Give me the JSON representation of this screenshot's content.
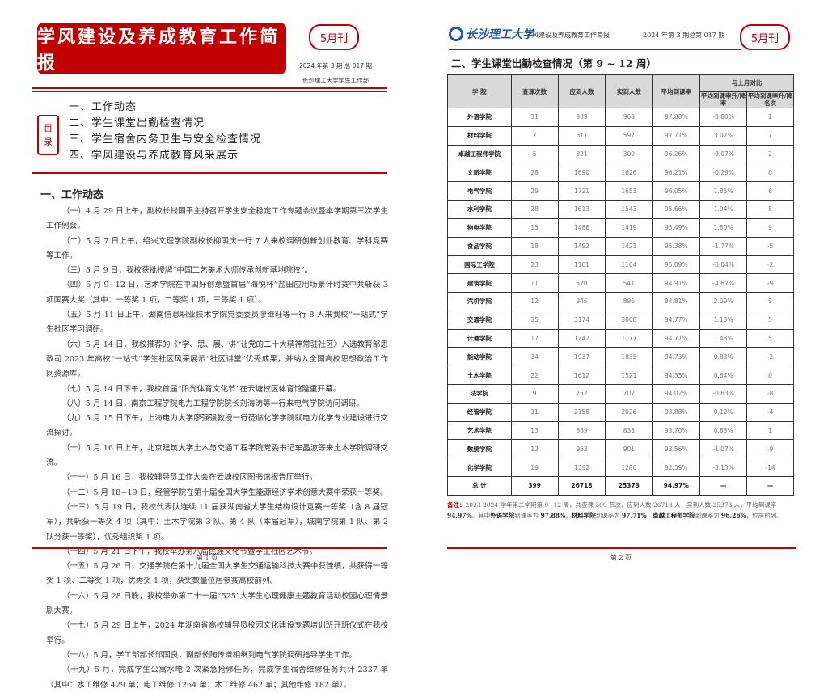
{
  "page1": {
    "banner_title": "学风建设及养成教育工作简报",
    "edition_label": "5月刊",
    "issue": "2024 年第 3 期 总 017 期",
    "publisher": "长沙理工大学学生工作部",
    "toc_label": [
      "目",
      "录"
    ],
    "toc": [
      "一、工作动态",
      "二、学生课堂出勤检查情况",
      "三、学生宿舍内务卫生与安全检查情况",
      "四、学风建设与养成教育风采展示"
    ],
    "section_title": "一、工作动态",
    "paragraphs": [
      "（一）4 月 29 日上午，副校长钱国平主持召开学生安全稳定工作专题会议暨本学期第三次学生工作例会。",
      "（二）5 月 7 日上午，绍兴文理学院副校长柳国庆一行 7 人来校调研创新创业教育、学科竞赛等工作。",
      "（三）5 月 9 日，我校获批授牌“中国工艺美术大师传承创新基地院校”。",
      "（四）5 月 9~12 日，艺术学院在中国好创意暨首届“海悦杯”盐田应用场景计时赛中共斩获 3 项国赛大奖（其中：一等奖 1 项，二等奖 1 项，三等奖 1 项）。",
      "（五）5 月 11 日上午，湖南信息职业技术学院党委委员廖继旺等一行 8 人来我校“一站式”学生社区学习调研。",
      "（六）5 月 14 日，我校推荐的《“学、思、展、讲”让党的二十大精神常驻社区》入选教育部思政司 2023 年高校“一站式”学生社区风采展示“社区讲堂”优秀成果，并纳入全国高校思想政治工作网资源库。",
      "（七）5 月 14 日下午，我校首届“阳光体育文化节”在云塘校区体育馆隆重开幕。",
      "（八）5 月 14 日，南京工程学院电力工程学院院长刘海涛等一行来电气学院访问调研。",
      "（九）5 月 15 日下午，上海电力大学廖强强教授一行莅临化学学院就电力化学专业建设进行交流探讨。",
      "（十）5 月 16 日上午，北京建筑大学土木与交通工程学院党委书记车晶波等来土木学院调研交流。",
      "（十一）5 月 16 日，我校辅导员工作大会在云塘校区图书馆报告厅举行。",
      "（十二）5 月 18~19 日，经管学院在第十届全国大学生能源经济学术创意大赛中荣获一等奖。",
      "（十三）5 月 19 日，我校代表队连续 11 届获湖南省大学生结构设计竞赛一等奖（含 8 届冠军），共斩获一等奖 4 项（其中：土木学院第 3 队、第 4 队（本届冠军），城南学院第 1 队、第 2 队分获一等奖），优秀组织奖 1 项。",
      "（十四）5 月 21 日下午，我校举办第八届民族文化节暨学生社区艺术节。",
      "（十五）5 月 26 日，交通学院在第十九届全国大学生交通运输科技大赛中获佳绩，共获得一等奖 1 项、二等奖 1 项，优秀奖 1 项，获奖数量位居参赛高校前列。",
      "（十六）5 月 28 日晚，我校举办第二十一届“525”大学生心理健康主题教育活动校园心理情景剧大赛。",
      "（十七）5 月 29 日上午，2024 年湖南省高校辅导员校园文化建设专题培训班开班仪式在我校举行。",
      "（十八）5 月，学工部部长邱国良，副部长陶传谱相继到电气学院调研指导学生工作。",
      "（十九）5 月，完成学生公寓水电 2 次紧急抢修任务，完成学生宿舍维修任务共计 2337 单（其中：水工维修 429 单；电工维修 1264 单；木工维修 462 单；其他维修 182 单）。"
    ],
    "page_number": "第 1 页"
  },
  "page2": {
    "logo_text": "长沙理工大学",
    "header_title": "学风建设及养成教育工作简报",
    "header_issue": "2024 年第 3 期总第 017 期",
    "edition_label": "5月刊",
    "section_title": "二、学生课堂出勤检查情况（第 9 ~ 12 周）",
    "table": {
      "headers": [
        "学 院",
        "查课次数",
        "应到人数",
        "实到人数",
        "平均到课率",
        "与上月对比",
        "平均到课率升/降率",
        "平均到课率升/降名次"
      ],
      "rows": [
        [
          "外语学院",
          "31",
          "989",
          "968",
          "97.88%",
          "-0.80%",
          "1"
        ],
        [
          "材料学院",
          "7",
          "611",
          "597",
          "97.71%",
          "3.07%",
          "7"
        ],
        [
          "卓越工程师学院",
          "5",
          "321",
          "309",
          "96.26%",
          "-0.07%",
          "2"
        ],
        [
          "文新学院",
          "28",
          "1690",
          "1626",
          "96.21%",
          "-0.29%",
          "0"
        ],
        [
          "电气学院",
          "29",
          "1721",
          "1653",
          "96.05%",
          "1.86%",
          "6"
        ],
        [
          "水利学院",
          "28",
          "1613",
          "1543",
          "95.66%",
          "1.94%",
          "8"
        ],
        [
          "物电学院",
          "15",
          "1486",
          "1419",
          "95.49%",
          "1.80%",
          "9"
        ],
        [
          "食品学院",
          "18",
          "1492",
          "1423",
          "95.38%",
          "-1.77%",
          "-5"
        ],
        [
          "国际工学院",
          "23",
          "1161",
          "1104",
          "95.09%",
          "-0.04%",
          "-2"
        ],
        [
          "建筑学院",
          "11",
          "570",
          "541",
          "94.91%",
          "-4.67%",
          "-9"
        ],
        [
          "汽机学院",
          "12",
          "945",
          "896",
          "94.81%",
          "2.09%",
          "9"
        ],
        [
          "交通学院",
          "35",
          "3174",
          "3008",
          "94.77%",
          "1.13%",
          "5"
        ],
        [
          "计通学院",
          "17",
          "1242",
          "1177",
          "94.77%",
          "1.48%",
          "5"
        ],
        [
          "能动学院",
          "34",
          "1937",
          "1835",
          "94.73%",
          "0.88%",
          "-2"
        ],
        [
          "土木学院",
          "22",
          "1612",
          "1521",
          "94.35%",
          "0.64%",
          "0"
        ],
        [
          "法学院",
          "9",
          "752",
          "707",
          "94.02%",
          "-0.83%",
          "-8"
        ],
        [
          "经管学院",
          "31",
          "2158",
          "2026",
          "93.88%",
          "0.12%",
          "-4"
        ],
        [
          "艺术学院",
          "13",
          "889",
          "833",
          "93.70%",
          "0.88%",
          "1"
        ],
        [
          "数统学院",
          "12",
          "963",
          "901",
          "93.56%",
          "-1.07%",
          "-9"
        ],
        [
          "化学学院",
          "19",
          "1392",
          "1286",
          "92.39%",
          "-3.13%",
          "-14"
        ]
      ],
      "total": [
        "总 计",
        "399",
        "26718",
        "25373",
        "94.97%",
        "—",
        "—"
      ]
    },
    "note": {
      "label": "备注：",
      "t1": "2023-2024 学年第二学期第 9~12 周，共查课 399 节次，应到人数 26718 人，实到人数 25373 人，平均到课率 ",
      "v1": "94.97%",
      "t2": "。其中",
      "c1": "外语学院",
      "t3": "到课率为 ",
      "v2": "97.88%",
      "t4": "，",
      "c2": "材料学院",
      "t5": "到课率为 ",
      "v3": "97.71%",
      "t6": "，",
      "c3": "卓越工程师学院",
      "t7": "到课率为 ",
      "v4": "96.26%",
      "t8": "，位居前列。"
    },
    "page_number": "第 2 页"
  },
  "colors": {
    "accent": "#c00000",
    "header_bg": "#d9d9d9",
    "logo_blue": "#1f5aa6"
  }
}
